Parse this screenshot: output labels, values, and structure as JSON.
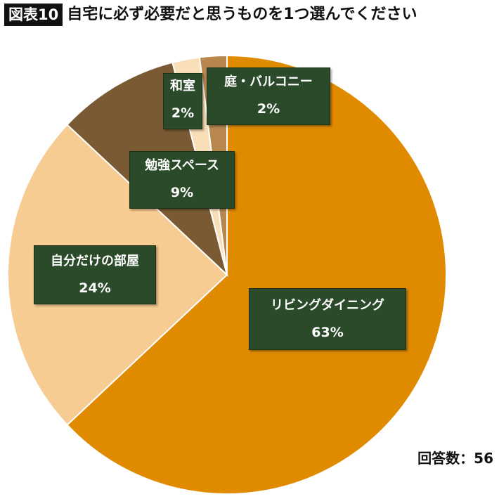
{
  "title": {
    "tag": "図表10",
    "text": "自宅に必ず必要だと思うものを1つ選んでください"
  },
  "footnote": "回答数：56",
  "chart_data": {
    "type": "pie",
    "title": "自宅に必ず必要だと思うものを1つ選んでください",
    "slices": [
      {
        "label": "リビングダイニング",
        "value": 63,
        "value_label": "63%",
        "color": "#e08a00"
      },
      {
        "label": "自分だけの部屋",
        "value": 24,
        "value_label": "24%",
        "color": "#f6cc92"
      },
      {
        "label": "勉強スペース",
        "value": 9,
        "value_label": "9%",
        "color": "#7a5a33"
      },
      {
        "label": "和室",
        "value": 2,
        "value_label": "2%",
        "color": "#f9dfb8"
      },
      {
        "label": "庭・バルコニー",
        "value": 2,
        "value_label": "2%",
        "color": "#b8874e"
      }
    ],
    "respondents": 56
  }
}
